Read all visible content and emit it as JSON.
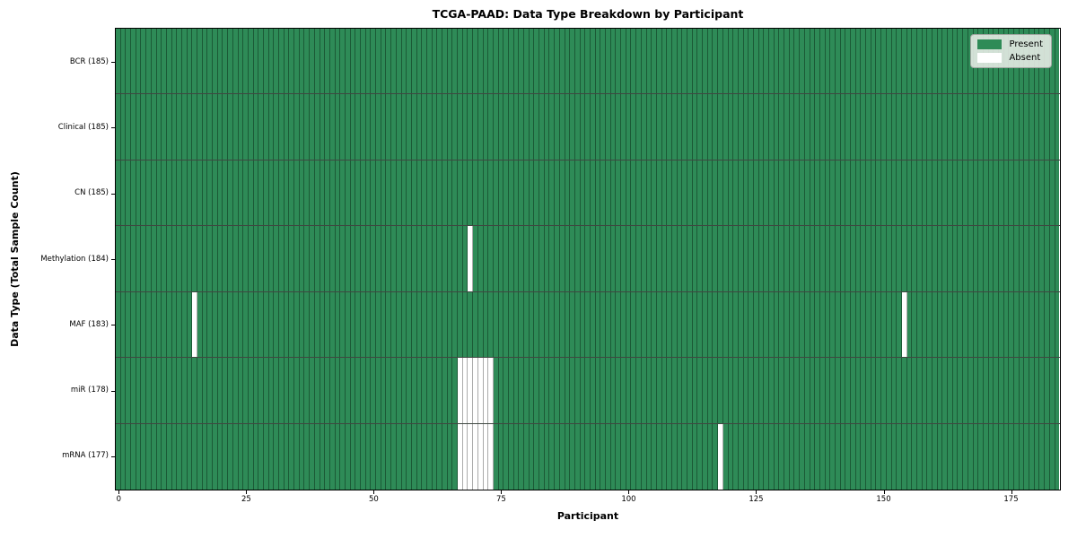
{
  "figure": {
    "title": "TCGA-PAAD: Data Type Breakdown by Participant",
    "xlabel": "Participant",
    "ylabel": "Data Type (Total Sample Count)"
  },
  "legend": {
    "items": [
      {
        "label": "Present",
        "color": "#2e8b57"
      },
      {
        "label": "Absent",
        "color": "#ffffff"
      }
    ]
  },
  "chart_data": {
    "type": "heatmap",
    "title": "TCGA-PAAD: Data Type Breakdown by Participant",
    "xlabel": "Participant",
    "ylabel": "Data Type (Total Sample Count)",
    "x_ticks": [
      0,
      25,
      50,
      75,
      100,
      125,
      150,
      175
    ],
    "n_participants": 185,
    "xlim": [
      -0.5,
      184.5
    ],
    "grid": false,
    "legend_position": "upper right",
    "colors": {
      "present": "#2e8b57",
      "absent": "#ffffff"
    },
    "rows": [
      {
        "label": "BCR (185)",
        "data_type": "BCR",
        "total": 185,
        "absent_participants": []
      },
      {
        "label": "Clinical (185)",
        "data_type": "Clinical",
        "total": 185,
        "absent_participants": []
      },
      {
        "label": "CN (185)",
        "data_type": "CN",
        "total": 185,
        "absent_participants": []
      },
      {
        "label": "Methylation (184)",
        "data_type": "Methylation",
        "total": 184,
        "absent_participants": [
          69
        ]
      },
      {
        "label": "MAF (183)",
        "data_type": "MAF",
        "total": 183,
        "absent_participants": [
          15,
          154
        ]
      },
      {
        "label": "miR (178)",
        "data_type": "miR",
        "total": 178,
        "absent_participants": [
          67,
          68,
          69,
          70,
          71,
          72,
          73
        ]
      },
      {
        "label": "mRNA (177)",
        "data_type": "mRNA",
        "total": 177,
        "absent_participants": [
          67,
          68,
          69,
          70,
          71,
          72,
          73,
          118
        ]
      }
    ]
  }
}
